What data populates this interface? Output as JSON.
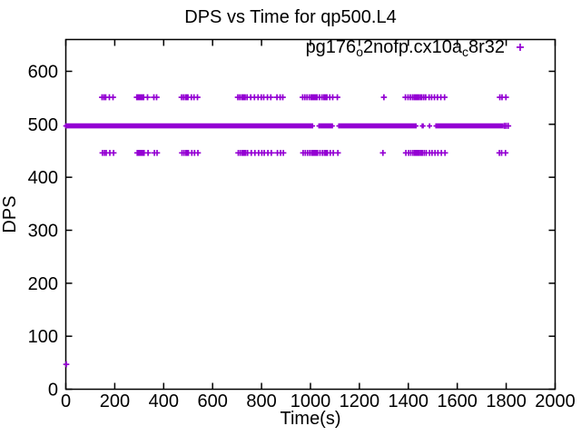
{
  "chart_data": {
    "type": "scatter",
    "title": "DPS vs Time for qp500.L4",
    "xlabel": "Time(s)",
    "ylabel": "DPS",
    "xlim": [
      0,
      2000
    ],
    "ylim": [
      0,
      660
    ],
    "xticks": [
      0,
      200,
      400,
      600,
      800,
      1000,
      1200,
      1400,
      1600,
      1800,
      2000
    ],
    "yticks": [
      0,
      100,
      200,
      300,
      400,
      500,
      600
    ],
    "grid": false,
    "legend_position": "top-right-inside",
    "colors": {
      "marker": "#9400d3",
      "axis": "#000000",
      "text": "#000000",
      "background": "#ffffff"
    },
    "legend_label_plain": "pg176o2nofp.cx10ac8r32",
    "legend_label_parts": [
      {
        "text": "pg176",
        "sub": false
      },
      {
        "text": "o",
        "sub": true
      },
      {
        "text": "2nofp.cx10a",
        "sub": false
      },
      {
        "text": "c",
        "sub": true
      },
      {
        "text": "8r32",
        "sub": false
      }
    ],
    "series": [
      {
        "name": "pg176o2nofp.cx10ac8r32",
        "marker": "plus",
        "color": "#9400d3",
        "dense_band": {
          "dps": 497,
          "step": 3,
          "segments": [
            [
              0,
              1009
            ],
            [
              1035,
              1090
            ],
            [
              1116,
              1431
            ],
            [
              1457,
              1461
            ],
            [
              1487,
              1487
            ],
            [
              1513,
              1786
            ]
          ]
        },
        "upper_band": {
          "dps": 551,
          "times": [
            148,
            156,
            163,
            178,
            193,
            290,
            296,
            301,
            305,
            309,
            313,
            318,
            334,
            360,
            371,
            473,
            481,
            489,
            494,
            499,
            513,
            524,
            538,
            703,
            711,
            719,
            724,
            728,
            733,
            741,
            756,
            771,
            786,
            799,
            809,
            824,
            838,
            863,
            876,
            887,
            968,
            977,
            986,
            995,
            1003,
            1009,
            1015,
            1021,
            1027,
            1037,
            1047,
            1055,
            1061,
            1067,
            1079,
            1091,
            1110,
            1300,
            1388,
            1399,
            1408,
            1417,
            1424,
            1430,
            1436,
            1442,
            1449,
            1455,
            1463,
            1471,
            1485,
            1495,
            1507,
            1519,
            1533,
            1548,
            1774,
            1783,
            1799
          ]
        },
        "lower_band": {
          "dps": 446,
          "times": [
            150,
            158,
            165,
            180,
            195,
            292,
            298,
            303,
            307,
            311,
            315,
            320,
            336,
            362,
            373,
            475,
            483,
            491,
            496,
            501,
            515,
            526,
            540,
            705,
            713,
            721,
            726,
            730,
            735,
            743,
            758,
            773,
            788,
            801,
            811,
            826,
            840,
            865,
            878,
            889,
            970,
            979,
            988,
            997,
            1005,
            1011,
            1017,
            1023,
            1029,
            1039,
            1049,
            1057,
            1063,
            1069,
            1081,
            1093,
            1112,
            1296,
            1390,
            1401,
            1410,
            1419,
            1426,
            1432,
            1438,
            1444,
            1451,
            1457,
            1465,
            1473,
            1487,
            1497,
            1509,
            1521,
            1535,
            1550,
            1772,
            1781,
            1797
          ]
        },
        "isolated_points": [
          {
            "time": 2,
            "dps": 47
          },
          {
            "time": 1793,
            "dps": 497
          },
          {
            "time": 1800,
            "dps": 497
          },
          {
            "time": 1808,
            "dps": 497
          }
        ]
      }
    ]
  }
}
